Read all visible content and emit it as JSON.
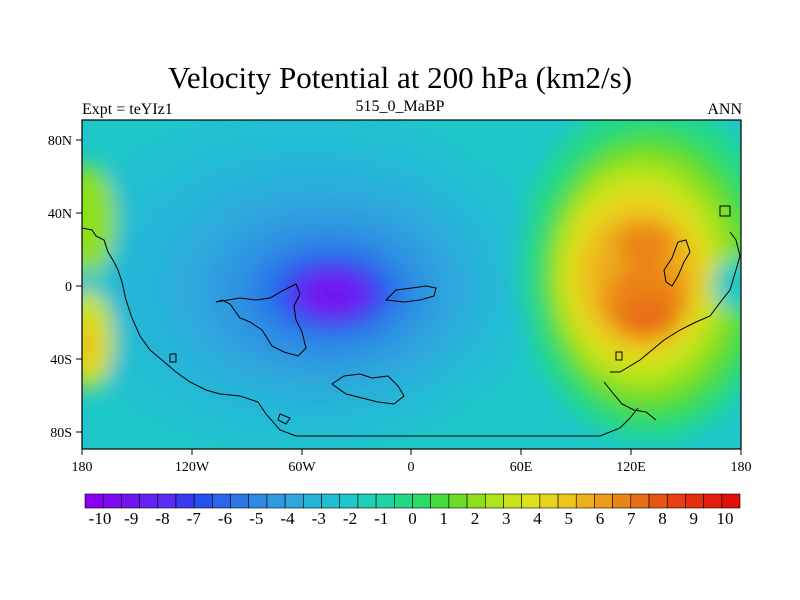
{
  "title": "Velocity Potential at 200 hPa (km2/s)",
  "left_string": "Expt = teYIz1",
  "center_string": "515_0_MaBP",
  "right_string": "ANN",
  "x_ticks": [
    "180",
    "120W",
    "60W",
    "0",
    "60E",
    "120E",
    "180"
  ],
  "y_ticks": [
    "80N",
    "40N",
    "0",
    "40S",
    "80S"
  ],
  "colorbar": {
    "labels": [
      "-10",
      "-9",
      "-8",
      "-7",
      "-6",
      "-5",
      "-4",
      "-3",
      "-2",
      "-1",
      "0",
      "1",
      "2",
      "3",
      "4",
      "5",
      "6",
      "7",
      "8",
      "9",
      "10"
    ],
    "colors": [
      "#8a00f0",
      "#7e0af0",
      "#7216f0",
      "#6622f0",
      "#5a2ef0",
      "#3a3af0",
      "#2850f0",
      "#2a66ec",
      "#2c78e8",
      "#2e8ae4",
      "#2e9ae0",
      "#2ea8dc",
      "#26b4d8",
      "#20bed2",
      "#1ec8c8",
      "#1ed0b8",
      "#1ed4a4",
      "#22d888",
      "#2cda6a",
      "#46dc3c",
      "#6adc24",
      "#8ee01c",
      "#aee41e",
      "#c8e41e",
      "#dce01e",
      "#e8d41e",
      "#eec41c",
      "#eeb01a",
      "#ec9c18",
      "#ea8416",
      "#e86c14",
      "#e85612",
      "#e64010",
      "#e42e0e",
      "#e21e0c",
      "#e0100a"
    ]
  }
}
